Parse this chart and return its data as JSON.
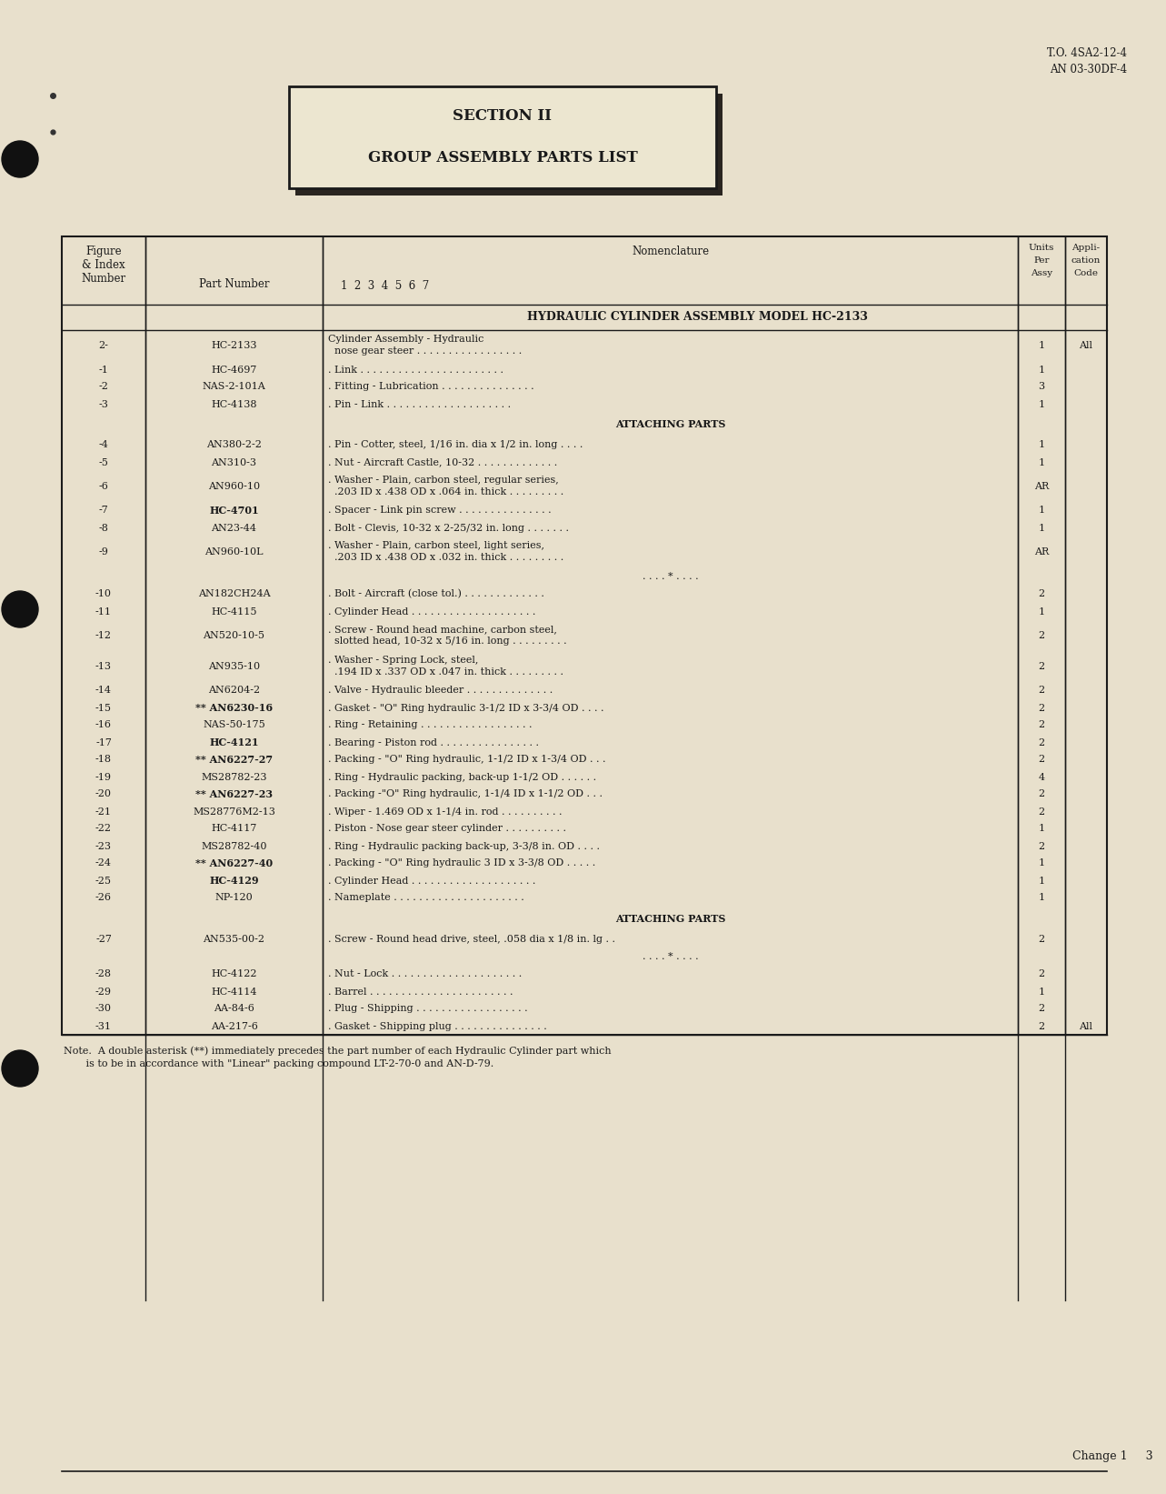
{
  "page_color": "#e8e0cc",
  "top_right_text": [
    "T.O. 4SA2-12-4",
    "AN 03-30DF-4"
  ],
  "section_box_title": "SECTION II",
  "section_box_subtitle": "GROUP ASSEMBLY PARTS LIST",
  "assembly_header": "HYDRAULIC CYLINDER ASSEMBLY MODEL HC-2133",
  "footer_note1": "Note.  A double asterisk (**) immediately precedes the part number of each Hydraulic Cylinder part which",
  "footer_note2": "       is to be in accordance with \"Linear\" packing compound LT-2-70-0 and AN-D-79.",
  "footer_right": "Change 1     3",
  "rows": [
    {
      "fig": "2-",
      "part": "HC-2133",
      "line1": "Cylinder Assembly - Hydraulic",
      "line2": "  nose gear steer . . . . . . . . . . . . . . . . .",
      "units": "1",
      "appli": "All",
      "bold_part": false
    },
    {
      "fig": "-1",
      "part": "HC-4697",
      "line1": ". Link . . . . . . . . . . . . . . . . . . . . . . .",
      "line2": "",
      "units": "1",
      "appli": "",
      "bold_part": false
    },
    {
      "fig": "-2",
      "part": "NAS-2-101A",
      "line1": ". Fitting - Lubrication . . . . . . . . . . . . . . .",
      "line2": "",
      "units": "3",
      "appli": "",
      "bold_part": false
    },
    {
      "fig": "-3",
      "part": "HC-4138",
      "line1": ". Pin - Link . . . . . . . . . . . . . . . . . . . .",
      "line2": "",
      "units": "1",
      "appli": "",
      "bold_part": false
    },
    {
      "fig": "",
      "part": "",
      "line1": "ATTACHING PARTS",
      "line2": "",
      "units": "",
      "appli": "",
      "bold_part": false,
      "section_header": true
    },
    {
      "fig": "-4",
      "part": "AN380-2-2",
      "line1": ". Pin - Cotter, steel, 1/16 in. dia x 1/2 in. long . . . .",
      "line2": "",
      "units": "1",
      "appli": "",
      "bold_part": false
    },
    {
      "fig": "-5",
      "part": "AN310-3",
      "line1": ". Nut - Aircraft Castle, 10-32 . . . . . . . . . . . . .",
      "line2": "",
      "units": "1",
      "appli": "",
      "bold_part": false
    },
    {
      "fig": "-6",
      "part": "AN960-10",
      "line1": ". Washer - Plain, carbon steel, regular series,",
      "line2": "  .203 ID x .438 OD x .064 in. thick . . . . . . . . .",
      "units": "AR",
      "appli": "",
      "bold_part": false
    },
    {
      "fig": "-7",
      "part": "HC-4701",
      "line1": ". Spacer - Link pin screw . . . . . . . . . . . . . . .",
      "line2": "",
      "units": "1",
      "appli": "",
      "bold_part": true
    },
    {
      "fig": "-8",
      "part": "AN23-44",
      "line1": ". Bolt - Clevis, 10-32 x 2-25/32 in. long . . . . . . .",
      "line2": "",
      "units": "1",
      "appli": "",
      "bold_part": false
    },
    {
      "fig": "-9",
      "part": "AN960-10L",
      "line1": ". Washer - Plain, carbon steel, light series,",
      "line2": "  .203 ID x .438 OD x .032 in. thick . . . . . . . . .",
      "units": "AR",
      "appli": "",
      "bold_part": false
    },
    {
      "fig": "",
      "part": "",
      "line1": ". . . . * . . . .",
      "line2": "",
      "units": "",
      "appli": "",
      "bold_part": false,
      "separator": true
    },
    {
      "fig": "-10",
      "part": "AN182CH24A",
      "line1": ". Bolt - Aircraft (close tol.) . . . . . . . . . . . . .",
      "line2": "",
      "units": "2",
      "appli": "",
      "bold_part": false
    },
    {
      "fig": "-11",
      "part": "HC-4115",
      "line1": ". Cylinder Head . . . . . . . . . . . . . . . . . . . .",
      "line2": "",
      "units": "1",
      "appli": "",
      "bold_part": false
    },
    {
      "fig": "-12",
      "part": "AN520-10-5",
      "line1": ". Screw - Round head machine, carbon steel,",
      "line2": "  slotted head, 10-32 x 5/16 in. long . . . . . . . . .",
      "units": "2",
      "appli": "",
      "bold_part": false
    },
    {
      "fig": "-13",
      "part": "AN935-10",
      "line1": ". Washer - Spring Lock, steel,",
      "line2": "  .194 ID x .337 OD x .047 in. thick . . . . . . . . .",
      "units": "2",
      "appli": "",
      "bold_part": false
    },
    {
      "fig": "-14",
      "part": "AN6204-2",
      "line1": ". Valve - Hydraulic bleeder . . . . . . . . . . . . . .",
      "line2": "",
      "units": "2",
      "appli": "",
      "bold_part": false
    },
    {
      "fig": "-15",
      "part": "** AN6230-16",
      "line1": ". Gasket - \"O\" Ring hydraulic 3-1/2 ID x 3-3/4 OD . . . .",
      "line2": "",
      "units": "2",
      "appli": "",
      "bold_part": false
    },
    {
      "fig": "-16",
      "part": "NAS-50-175",
      "line1": ". Ring - Retaining . . . . . . . . . . . . . . . . . .",
      "line2": "",
      "units": "2",
      "appli": "",
      "bold_part": false
    },
    {
      "fig": "-17",
      "part": "HC-4121",
      "line1": ". Bearing - Piston rod . . . . . . . . . . . . . . . .",
      "line2": "",
      "units": "2",
      "appli": "",
      "bold_part": true
    },
    {
      "fig": "-18",
      "part": "** AN6227-27",
      "line1": ". Packing - \"O\" Ring hydraulic, 1-1/2 ID x 1-3/4 OD . . .",
      "line2": "",
      "units": "2",
      "appli": "",
      "bold_part": false
    },
    {
      "fig": "-19",
      "part": "MS28782-23",
      "line1": ". Ring - Hydraulic packing, back-up 1-1/2 OD . . . . . .",
      "line2": "",
      "units": "4",
      "appli": "",
      "bold_part": false
    },
    {
      "fig": "-20",
      "part": "** AN6227-23",
      "line1": ". Packing -\"O\" Ring hydraulic, 1-1/4 ID x 1-1/2 OD . . .",
      "line2": "",
      "units": "2",
      "appli": "",
      "bold_part": false
    },
    {
      "fig": "-21",
      "part": "MS28776M2-13",
      "line1": ". Wiper - 1.469 OD x 1-1/4 in. rod . . . . . . . . . .",
      "line2": "",
      "units": "2",
      "appli": "",
      "bold_part": false
    },
    {
      "fig": "-22",
      "part": "HC-4117",
      "line1": ". Piston - Nose gear steer cylinder . . . . . . . . . .",
      "line2": "",
      "units": "1",
      "appli": "",
      "bold_part": false
    },
    {
      "fig": "-23",
      "part": "MS28782-40",
      "line1": ". Ring - Hydraulic packing back-up, 3-3/8 in. OD . . . .",
      "line2": "",
      "units": "2",
      "appli": "",
      "bold_part": false
    },
    {
      "fig": "-24",
      "part": "** AN6227-40",
      "line1": ". Packing - \"O\" Ring hydraulic 3 ID x 3-3/8 OD . . . . .",
      "line2": "",
      "units": "1",
      "appli": "",
      "bold_part": false
    },
    {
      "fig": "-25",
      "part": "HC-4129",
      "line1": ". Cylinder Head . . . . . . . . . . . . . . . . . . . .",
      "line2": "",
      "units": "1",
      "appli": "",
      "bold_part": true
    },
    {
      "fig": "-26",
      "part": "NP-120",
      "line1": ". Nameplate . . . . . . . . . . . . . . . . . . . . .",
      "line2": "",
      "units": "1",
      "appli": "",
      "bold_part": false
    },
    {
      "fig": "",
      "part": "",
      "line1": "ATTACHING PARTS",
      "line2": "",
      "units": "",
      "appli": "",
      "bold_part": false,
      "section_header": true
    },
    {
      "fig": "-27",
      "part": "AN535-00-2",
      "line1": ". Screw - Round head drive, steel, .058 dia x 1/8 in. lg . .",
      "line2": "",
      "units": "2",
      "appli": "",
      "bold_part": false
    },
    {
      "fig": "",
      "part": "",
      "line1": ". . . . * . . . .",
      "line2": "",
      "units": "",
      "appli": "",
      "bold_part": false,
      "separator": true
    },
    {
      "fig": "-28",
      "part": "HC-4122",
      "line1": ". Nut - Lock . . . . . . . . . . . . . . . . . . . . .",
      "line2": "",
      "units": "2",
      "appli": "",
      "bold_part": false
    },
    {
      "fig": "-29",
      "part": "HC-4114",
      "line1": ". Barrel . . . . . . . . . . . . . . . . . . . . . . .",
      "line2": "",
      "units": "1",
      "appli": "",
      "bold_part": false
    },
    {
      "fig": "-30",
      "part": "AA-84-6",
      "line1": ". Plug - Shipping . . . . . . . . . . . . . . . . . .",
      "line2": "",
      "units": "2",
      "appli": "",
      "bold_part": false
    },
    {
      "fig": "-31",
      "part": "AA-217-6",
      "line1": ". Gasket - Shipping plug . . . . . . . . . . . . . . .",
      "line2": "",
      "units": "2",
      "appli": "All",
      "bold_part": false
    }
  ]
}
